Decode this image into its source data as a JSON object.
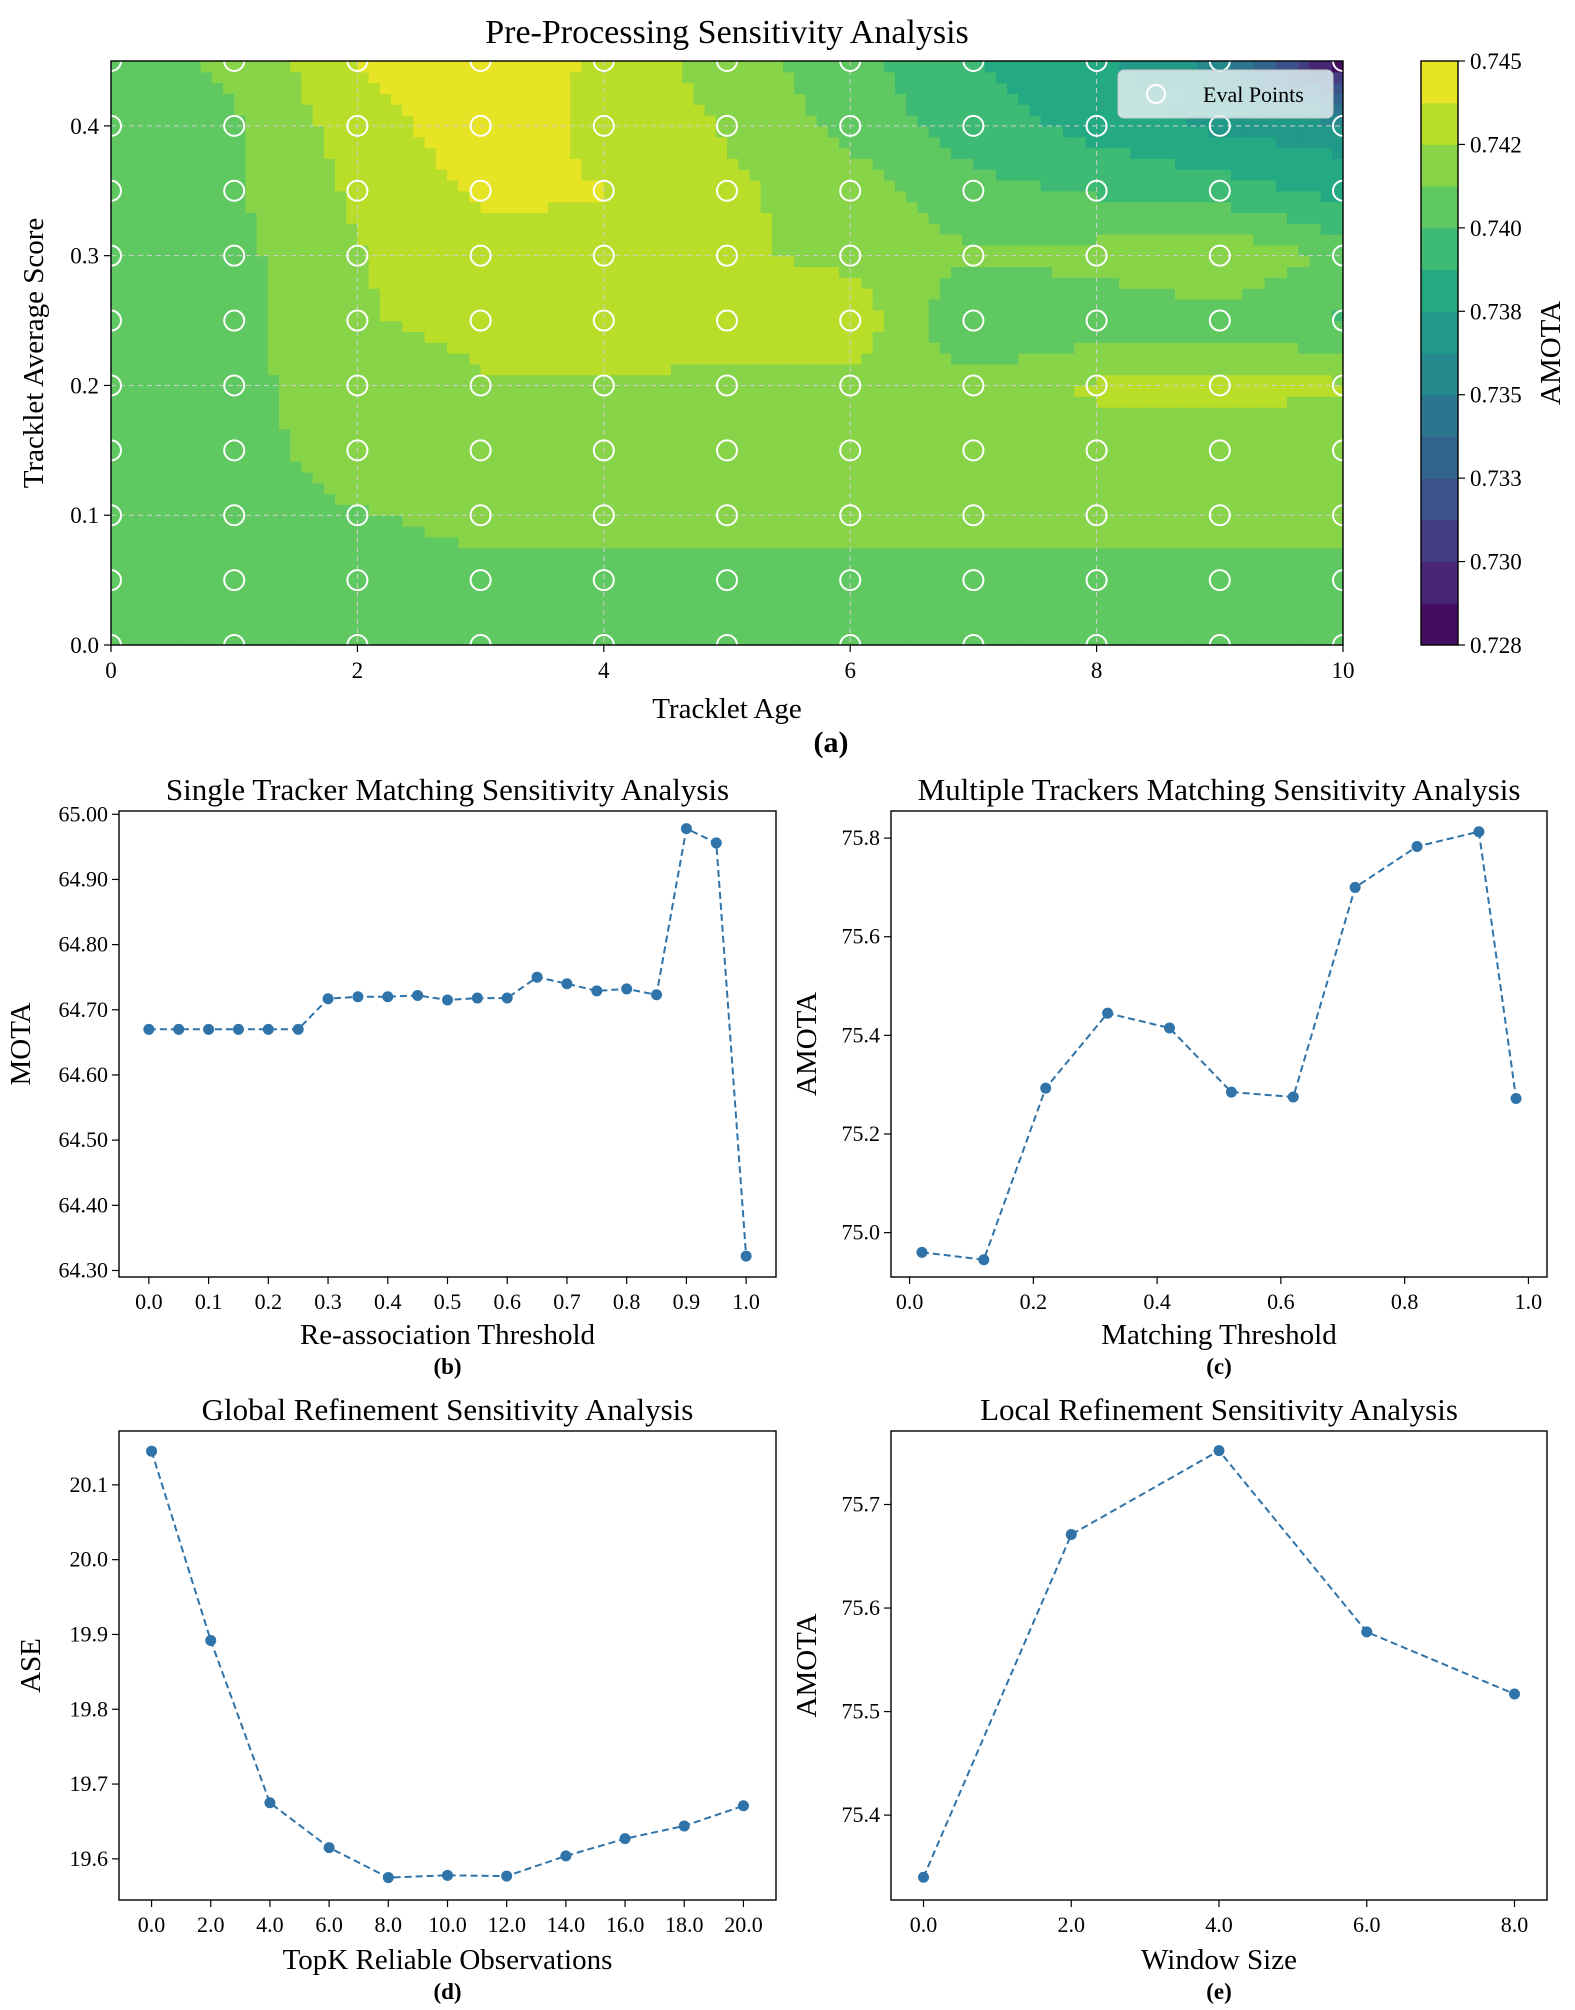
{
  "colors": {
    "series": "#2f73a8",
    "viridis": [
      "#440154",
      "#482475",
      "#414487",
      "#355f8d",
      "#2a788e",
      "#21918c",
      "#22a884",
      "#44bf70",
      "#7ad151",
      "#bddf26",
      "#fde725"
    ]
  },
  "chart_data": [
    {
      "id": "a",
      "type": "heatmap",
      "title": "Pre-Processing Sensitivity Analysis",
      "panel_label": "(a)",
      "xlabel": "Tracklet Age",
      "ylabel": "Tracklet Average Score",
      "xlim": [
        0,
        10
      ],
      "ylim": [
        0,
        0.45
      ],
      "x_ticks": [
        "0",
        "2",
        "4",
        "6",
        "8",
        "10"
      ],
      "y_ticks": [
        "0.0",
        "0.1",
        "0.2",
        "0.3",
        "0.4"
      ],
      "legend": "Eval Points",
      "legend_position": "top-right",
      "colorbar_label": "AMOTA",
      "colorbar_ticks": [
        "0.728",
        "0.730",
        "0.733",
        "0.735",
        "0.738",
        "0.740",
        "0.742",
        "0.745"
      ],
      "clim": [
        0.728,
        0.745
      ],
      "eval_x": [
        0,
        1,
        2,
        3,
        4,
        5,
        6,
        7,
        8,
        9,
        10
      ],
      "eval_y": [
        0.0,
        0.05,
        0.1,
        0.15,
        0.2,
        0.25,
        0.3,
        0.35,
        0.4,
        0.45
      ],
      "z": [
        [
          0.741,
          0.741,
          0.7412,
          0.7412,
          0.7412,
          0.7412,
          0.7412,
          0.7412,
          0.7412,
          0.7412,
          0.7412
        ],
        [
          0.741,
          0.741,
          0.7412,
          0.7412,
          0.7412,
          0.7412,
          0.7412,
          0.7412,
          0.7412,
          0.7412,
          0.7412
        ],
        [
          0.741,
          0.741,
          0.7413,
          0.7415,
          0.7415,
          0.7415,
          0.7415,
          0.7415,
          0.7415,
          0.7415,
          0.7415
        ],
        [
          0.741,
          0.741,
          0.7418,
          0.742,
          0.742,
          0.742,
          0.742,
          0.742,
          0.742,
          0.742,
          0.7418
        ],
        [
          0.741,
          0.741,
          0.742,
          0.7425,
          0.7425,
          0.7422,
          0.7422,
          0.7418,
          0.7428,
          0.7428,
          0.7428
        ],
        [
          0.741,
          0.741,
          0.7425,
          0.7428,
          0.743,
          0.7435,
          0.7435,
          0.74,
          0.7405,
          0.7408,
          0.74
        ],
        [
          0.741,
          0.741,
          0.7425,
          0.7432,
          0.7437,
          0.7428,
          0.7422,
          0.7415,
          0.7418,
          0.7425,
          0.741
        ],
        [
          0.741,
          0.7412,
          0.7428,
          0.744,
          0.7438,
          0.7428,
          0.742,
          0.7405,
          0.74,
          0.7395,
          0.7385
        ],
        [
          0.741,
          0.7412,
          0.7432,
          0.7445,
          0.7435,
          0.7425,
          0.741,
          0.7395,
          0.7385,
          0.7375,
          0.737
        ],
        [
          0.741,
          0.7415,
          0.7438,
          0.7448,
          0.7435,
          0.742,
          0.7405,
          0.739,
          0.738,
          0.736,
          0.728
        ]
      ]
    },
    {
      "id": "b",
      "type": "line",
      "title": "Single Tracker Matching Sensitivity Analysis",
      "panel_label": "(b)",
      "xlabel": "Re-association Threshold",
      "ylabel": "MOTA",
      "xlim": [
        -0.05,
        1.05
      ],
      "ylim": [
        64.29,
        65.005
      ],
      "x_ticks": [
        "0.0",
        "0.1",
        "0.2",
        "0.3",
        "0.4",
        "0.5",
        "0.6",
        "0.7",
        "0.8",
        "0.9",
        "1.0"
      ],
      "x_tick_values": [
        0,
        0.1,
        0.2,
        0.3,
        0.4,
        0.5,
        0.6,
        0.7,
        0.8,
        0.9,
        1.0
      ],
      "y_ticks": [
        "64.30",
        "64.40",
        "64.50",
        "64.60",
        "64.70",
        "64.80",
        "64.90",
        "65.00"
      ],
      "y_tick_values": [
        64.3,
        64.4,
        64.5,
        64.6,
        64.7,
        64.8,
        64.9,
        65.0
      ],
      "x": [
        0.0,
        0.05,
        0.1,
        0.15,
        0.2,
        0.25,
        0.3,
        0.35,
        0.4,
        0.45,
        0.5,
        0.55,
        0.6,
        0.65,
        0.7,
        0.75,
        0.8,
        0.85,
        0.9,
        0.95,
        1.0
      ],
      "y": [
        64.67,
        64.67,
        64.67,
        64.67,
        64.67,
        64.67,
        64.717,
        64.72,
        64.72,
        64.722,
        64.715,
        64.718,
        64.718,
        64.75,
        64.74,
        64.729,
        64.732,
        64.723,
        64.978,
        64.956,
        64.322
      ]
    },
    {
      "id": "c",
      "type": "line",
      "title": "Multiple Trackers Matching Sensitivity Analysis",
      "panel_label": "(c)",
      "xlabel": "Matching Threshold",
      "ylabel": "AMOTA",
      "xlim": [
        -0.03,
        1.03
      ],
      "ylim": [
        74.91,
        75.855
      ],
      "x_ticks": [
        "0.0",
        "0.2",
        "0.4",
        "0.6",
        "0.8",
        "1.0"
      ],
      "x_tick_values": [
        0,
        0.2,
        0.4,
        0.6,
        0.8,
        1.0
      ],
      "y_ticks": [
        "75.0",
        "75.2",
        "75.4",
        "75.6",
        "75.8"
      ],
      "y_tick_values": [
        75.0,
        75.2,
        75.4,
        75.6,
        75.8
      ],
      "x": [
        0.02,
        0.12,
        0.22,
        0.32,
        0.42,
        0.52,
        0.62,
        0.72,
        0.82,
        0.92,
        0.98
      ],
      "y": [
        74.96,
        74.945,
        75.293,
        75.445,
        75.415,
        75.285,
        75.275,
        75.7,
        75.783,
        75.813,
        75.272
      ]
    },
    {
      "id": "d",
      "type": "line",
      "title": "Global Refinement Sensitivity Analysis",
      "panel_label": "(d)",
      "xlabel": "TopK Reliable Observations",
      "ylabel": "ASE",
      "xlim": [
        -1.1,
        21.1
      ],
      "ylim": [
        19.545,
        20.172
      ],
      "x_ticks": [
        "0.0",
        "2.0",
        "4.0",
        "6.0",
        "8.0",
        "10.0",
        "12.0",
        "14.0",
        "16.0",
        "18.0",
        "20.0"
      ],
      "x_tick_values": [
        0,
        2,
        4,
        6,
        8,
        10,
        12,
        14,
        16,
        18,
        20
      ],
      "y_ticks": [
        "19.6",
        "19.7",
        "19.8",
        "19.9",
        "20.0",
        "20.1"
      ],
      "y_tick_values": [
        19.6,
        19.7,
        19.8,
        19.9,
        20.0,
        20.1
      ],
      "x": [
        0,
        2,
        4,
        6,
        8,
        10,
        12,
        14,
        16,
        18,
        20
      ],
      "y": [
        20.145,
        19.892,
        19.675,
        19.615,
        19.575,
        19.578,
        19.577,
        19.604,
        19.627,
        19.644,
        19.671
      ]
    },
    {
      "id": "e",
      "type": "line",
      "title": "Local Refinement Sensitivity Analysis",
      "panel_label": "(e)",
      "xlabel": "Window Size",
      "ylabel": "AMOTA",
      "xlim": [
        -0.44,
        8.44
      ],
      "ylim": [
        75.318,
        75.771
      ],
      "x_ticks": [
        "0.0",
        "2.0",
        "4.0",
        "6.0",
        "8.0"
      ],
      "x_tick_values": [
        0,
        2,
        4,
        6,
        8
      ],
      "y_ticks": [
        "75.4",
        "75.5",
        "75.6",
        "75.7"
      ],
      "y_tick_values": [
        75.4,
        75.5,
        75.6,
        75.7
      ],
      "x": [
        0,
        2,
        4,
        6,
        8
      ],
      "y": [
        75.34,
        75.671,
        75.752,
        75.577,
        75.517
      ]
    }
  ]
}
